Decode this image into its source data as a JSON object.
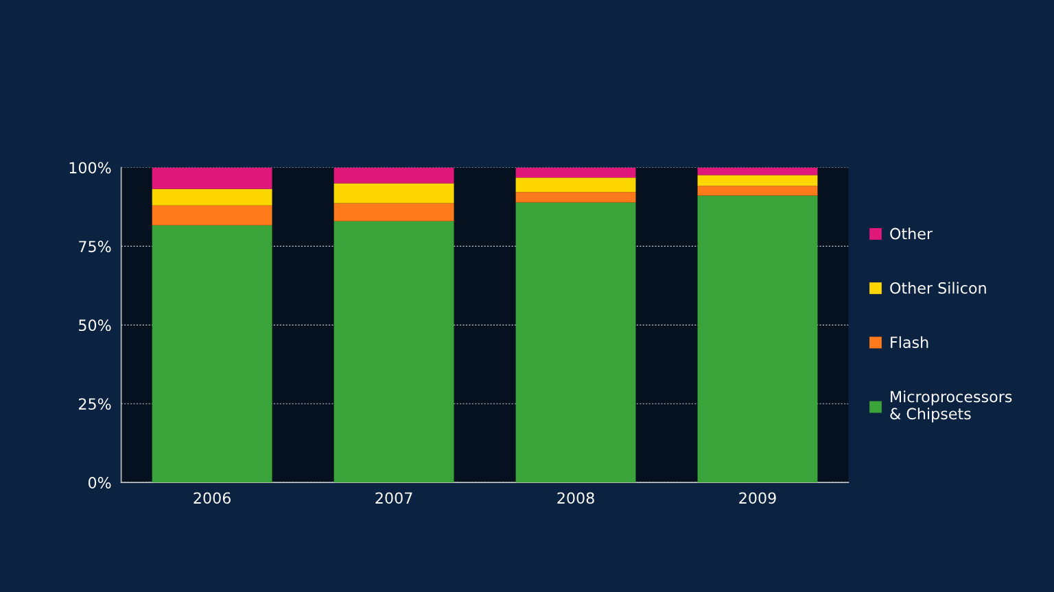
{
  "chart_data": {
    "type": "bar",
    "stacked": true,
    "categories": [
      "2006",
      "2007",
      "2008",
      "2009"
    ],
    "series": [
      {
        "name": "Microprocessors\n& Chipsets",
        "color": "#3aa33a",
        "values": [
          81.7,
          83.0,
          88.9,
          91.1
        ]
      },
      {
        "name": "Flash",
        "color": "#ff7a1a",
        "values": [
          6.3,
          5.7,
          3.3,
          3.1
        ]
      },
      {
        "name": "Other Silicon",
        "color": "#ffd700",
        "values": [
          5.2,
          6.3,
          4.6,
          3.4
        ]
      },
      {
        "name": "Other",
        "color": "#e0187a",
        "values": [
          6.8,
          5.0,
          3.2,
          2.4
        ]
      }
    ],
    "ylim": [
      0,
      100
    ],
    "yticks": [
      {
        "value": 0,
        "label": "0%"
      },
      {
        "value": 25,
        "label": "25%"
      },
      {
        "value": 50,
        "label": "50%"
      },
      {
        "value": 75,
        "label": "75%"
      },
      {
        "value": 100,
        "label": "100%"
      }
    ],
    "grid": "y",
    "legend": "right"
  }
}
